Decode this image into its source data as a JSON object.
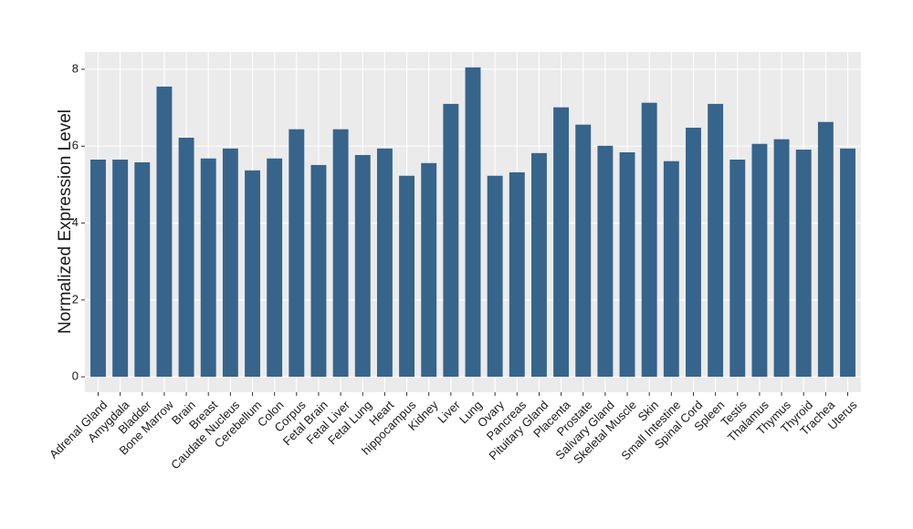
{
  "chart_data": {
    "type": "bar",
    "y_label": "Normalized Expression Level",
    "categories": [
      "Adrenal Gland",
      "Amygdala",
      "Bladder",
      "Bone Marrow",
      "Brain",
      "Breast",
      "Caudate Nucleus",
      "Cerebellum",
      "Colon",
      "Corpus",
      "Fetal Brain",
      "Fetal Liver",
      "Fetal Lung",
      "Heart",
      "hippocampus",
      "Kidney",
      "Liver",
      "Lung",
      "Ovary",
      "Pancreas",
      "Pituitary Gland",
      "Placenta",
      "Prostate",
      "Salivary Gland",
      "Skeletal Muscle",
      "Skin",
      "Small Intestine",
      "Spinal Cord",
      "Spleen",
      "Testis",
      "Thalamus",
      "Thymus",
      "Thyroid",
      "Trachea",
      "Uterus"
    ],
    "values": [
      5.65,
      5.65,
      5.58,
      7.55,
      6.22,
      5.68,
      5.94,
      5.37,
      5.68,
      6.44,
      5.51,
      6.44,
      5.77,
      5.94,
      5.23,
      5.56,
      7.1,
      8.05,
      5.23,
      5.32,
      5.82,
      7.01,
      6.56,
      6.01,
      5.84,
      7.13,
      5.61,
      6.48,
      7.1,
      5.65,
      6.06,
      6.18,
      5.91,
      6.63,
      5.94
    ],
    "color": "#37648b",
    "ylim": [
      -0.4,
      8.45
    ],
    "yticks": [
      0,
      2,
      4,
      6,
      8
    ],
    "grid": true
  }
}
